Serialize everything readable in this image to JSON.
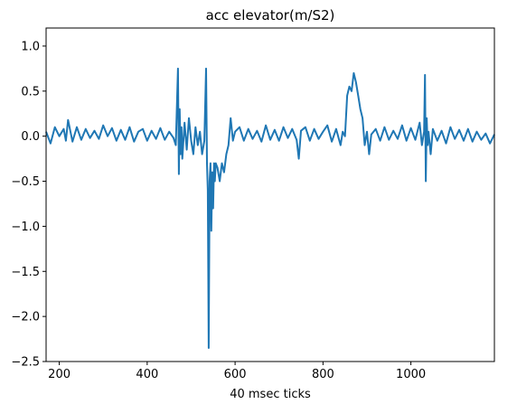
{
  "chart_data": {
    "type": "line",
    "title": "acc elevator(m/S2)",
    "xlabel": "40 msec ticks",
    "ylabel": "",
    "xlim": [
      170,
      1190
    ],
    "ylim": [
      -2.5,
      1.2
    ],
    "xticks": [
      200,
      400,
      600,
      800,
      1000
    ],
    "xtick_labels": [
      "200",
      "400",
      "600",
      "800",
      "1000"
    ],
    "yticks": [
      1.0,
      0.5,
      0.0,
      -0.5,
      -1.0,
      -1.5,
      -2.0,
      -2.5
    ],
    "ytick_labels": [
      "1.0",
      "0.5",
      "0.0",
      "−0.5",
      "−1.0",
      "−1.5",
      "−2.0",
      "−2.5"
    ],
    "grid": false,
    "series": [
      {
        "color": "#1f77b4",
        "x": [
          170,
          180,
          190,
          200,
          210,
          215,
          220,
          230,
          240,
          250,
          260,
          270,
          280,
          290,
          300,
          310,
          320,
          330,
          340,
          350,
          360,
          370,
          380,
          390,
          400,
          410,
          420,
          430,
          440,
          450,
          460,
          465,
          470,
          472,
          474,
          476,
          478,
          480,
          485,
          490,
          495,
          500,
          505,
          510,
          515,
          520,
          525,
          530,
          534,
          536,
          538,
          540,
          542,
          544,
          546,
          548,
          550,
          552,
          554,
          556,
          560,
          565,
          570,
          575,
          580,
          585,
          590,
          595,
          600,
          610,
          620,
          630,
          640,
          650,
          660,
          670,
          680,
          690,
          700,
          710,
          720,
          730,
          740,
          745,
          750,
          760,
          770,
          780,
          790,
          800,
          810,
          820,
          830,
          840,
          845,
          850,
          855,
          860,
          865,
          870,
          875,
          880,
          885,
          890,
          895,
          900,
          905,
          910,
          920,
          930,
          940,
          950,
          960,
          970,
          980,
          990,
          1000,
          1010,
          1020,
          1025,
          1030,
          1032,
          1034,
          1036,
          1038,
          1040,
          1045,
          1050,
          1060,
          1070,
          1080,
          1090,
          1100,
          1110,
          1120,
          1130,
          1140,
          1150,
          1160,
          1170,
          1180,
          1190
        ],
        "y": [
          0.05,
          -0.08,
          0.1,
          0.0,
          0.08,
          -0.05,
          0.18,
          -0.06,
          0.1,
          -0.04,
          0.08,
          -0.02,
          0.06,
          -0.03,
          0.12,
          0.0,
          0.09,
          -0.05,
          0.07,
          -0.04,
          0.1,
          -0.06,
          0.05,
          0.08,
          -0.05,
          0.06,
          -0.03,
          0.09,
          -0.04,
          0.05,
          -0.02,
          -0.1,
          0.75,
          -0.42,
          0.3,
          -0.2,
          0.1,
          -0.25,
          0.15,
          -0.15,
          0.2,
          -0.05,
          -0.2,
          0.1,
          -0.1,
          0.05,
          -0.2,
          -0.05,
          0.75,
          -0.3,
          -0.6,
          -2.35,
          -0.5,
          -0.3,
          -1.05,
          -0.4,
          -0.8,
          -0.3,
          -0.5,
          -0.3,
          -0.35,
          -0.5,
          -0.3,
          -0.4,
          -0.2,
          -0.1,
          0.2,
          -0.05,
          0.05,
          0.1,
          -0.05,
          0.08,
          -0.03,
          0.06,
          -0.06,
          0.12,
          -0.04,
          0.07,
          -0.05,
          0.1,
          -0.02,
          0.08,
          -0.04,
          -0.25,
          0.06,
          0.1,
          -0.05,
          0.08,
          -0.03,
          0.05,
          0.12,
          -0.06,
          0.08,
          -0.1,
          0.05,
          0.0,
          0.45,
          0.55,
          0.5,
          0.7,
          0.6,
          0.45,
          0.3,
          0.2,
          -0.1,
          0.05,
          -0.2,
          0.02,
          0.08,
          -0.05,
          0.1,
          -0.04,
          0.06,
          -0.03,
          0.12,
          -0.05,
          0.09,
          -0.04,
          0.15,
          -0.1,
          0.05,
          0.68,
          -0.5,
          0.2,
          -0.1,
          0.05,
          -0.2,
          0.08,
          -0.05,
          0.06,
          -0.08,
          0.1,
          -0.03,
          0.07,
          -0.05,
          0.08,
          -0.06,
          0.05,
          -0.04,
          0.03,
          -0.08,
          0.02
        ]
      }
    ]
  }
}
